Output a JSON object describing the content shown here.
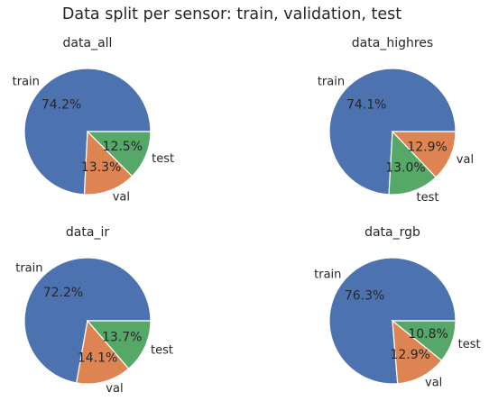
{
  "suptitle": "Data split per sensor: train, validation, test",
  "colors": {
    "train": "#4c72b0",
    "val": "#dd8452",
    "test": "#55a868"
  },
  "chart_data": [
    {
      "type": "pie",
      "title": "data_all",
      "labels": [
        "train",
        "val",
        "test"
      ],
      "values": [
        74.2,
        13.3,
        12.5
      ],
      "value_labels": [
        "74.2%",
        "13.3%",
        "12.5%"
      ]
    },
    {
      "type": "pie",
      "title": "data_highres",
      "labels": [
        "train",
        "test",
        "val"
      ],
      "values": [
        74.1,
        13.0,
        12.9
      ],
      "value_labels": [
        "74.1%",
        "13.0%",
        "12.9%"
      ]
    },
    {
      "type": "pie",
      "title": "data_ir",
      "labels": [
        "train",
        "val",
        "test"
      ],
      "values": [
        72.2,
        14.1,
        13.7
      ],
      "value_labels": [
        "72.2%",
        "14.1%",
        "13.7%"
      ]
    },
    {
      "type": "pie",
      "title": "data_rgb",
      "labels": [
        "train",
        "val",
        "test"
      ],
      "values": [
        76.3,
        12.9,
        10.8
      ],
      "value_labels": [
        "76.3%",
        "12.9%",
        "10.8%"
      ]
    }
  ]
}
